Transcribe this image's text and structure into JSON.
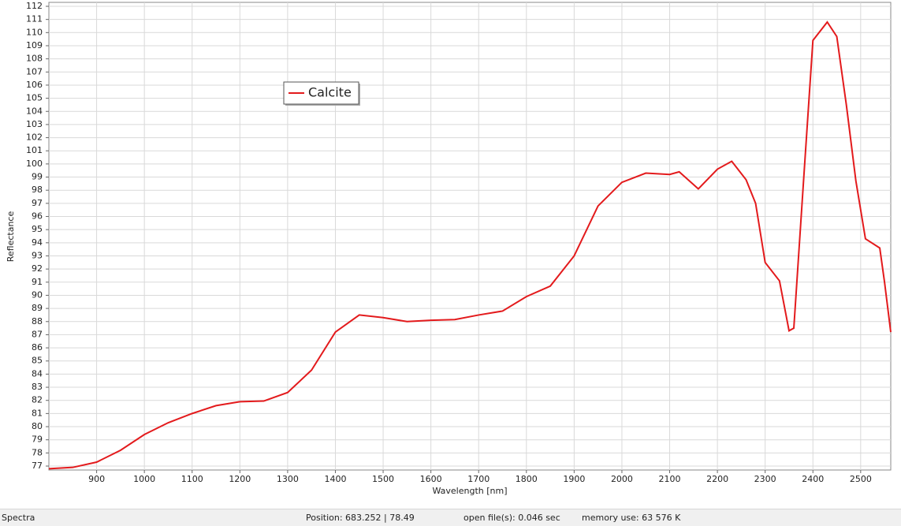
{
  "chart_data": {
    "type": "line",
    "x_label": "Wavelength [nm]",
    "y_label": "Reflectance",
    "x": [
      800,
      850,
      900,
      950,
      1000,
      1050,
      1100,
      1150,
      1200,
      1250,
      1300,
      1350,
      1400,
      1450,
      1500,
      1550,
      1600,
      1650,
      1700,
      1750,
      1800,
      1850,
      1900,
      1950,
      2000,
      2050,
      2100,
      2120,
      2160,
      2200,
      2230,
      2260,
      2280,
      2300,
      2330,
      2350,
      2360,
      2380,
      2400,
      2430,
      2450,
      2470,
      2490,
      2510,
      2540,
      2550,
      2563
    ],
    "series": [
      {
        "name": "Calcite",
        "color": "#e31a1c",
        "values": [
          76.8,
          76.9,
          77.3,
          78.2,
          79.4,
          80.3,
          81.0,
          81.6,
          81.9,
          81.95,
          82.6,
          84.3,
          87.2,
          88.5,
          88.3,
          88.0,
          88.1,
          88.15,
          88.5,
          88.8,
          89.9,
          90.7,
          93.0,
          96.8,
          98.6,
          99.3,
          99.2,
          99.4,
          98.1,
          99.6,
          100.2,
          98.8,
          97.0,
          92.5,
          91.1,
          87.3,
          87.5,
          98.5,
          109.4,
          110.8,
          109.7,
          104.5,
          98.7,
          94.3,
          93.6,
          91.0,
          87.2
        ]
      }
    ],
    "xlim": [
      800,
      2563
    ],
    "ylim": [
      76.7,
      112.3
    ],
    "xticks": [
      900,
      1000,
      1100,
      1200,
      1300,
      1400,
      1500,
      1600,
      1700,
      1800,
      1900,
      2000,
      2100,
      2200,
      2300,
      2400,
      2500
    ],
    "yticks": [
      77,
      78,
      79,
      80,
      81,
      82,
      83,
      84,
      85,
      86,
      87,
      88,
      89,
      90,
      91,
      92,
      93,
      94,
      95,
      96,
      97,
      98,
      99,
      100,
      101,
      102,
      103,
      104,
      105,
      106,
      107,
      108,
      109,
      110,
      111,
      112
    ],
    "grid": true
  },
  "status_bar": {
    "panel": "Spectra",
    "position": "Position: 683.252  |  78.49",
    "open_time": "open file(s): 0.046 sec",
    "memory": "memory use: 63 576 K"
  }
}
